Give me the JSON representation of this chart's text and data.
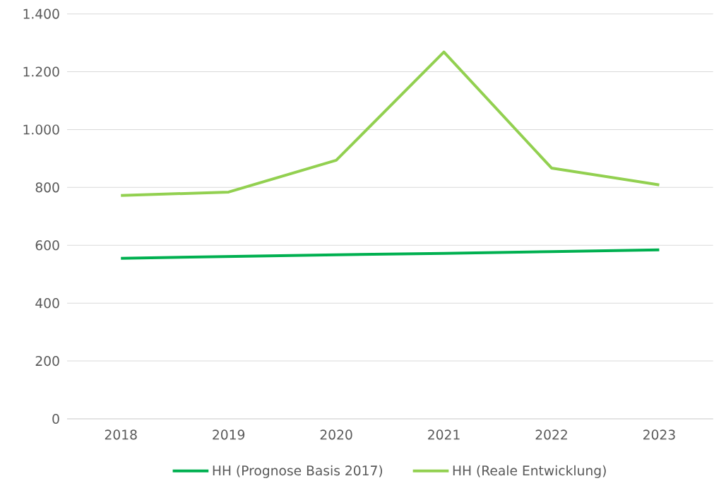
{
  "chart_data": {
    "type": "line",
    "categories": [
      "2018",
      "2019",
      "2020",
      "2021",
      "2022",
      "2023"
    ],
    "series": [
      {
        "name": "HH (Prognose Basis 2017)",
        "color": "#00b050",
        "values": [
          555,
          561,
          567,
          572,
          578,
          584
        ]
      },
      {
        "name": "HH (Reale Entwicklung)",
        "color": "#92d050",
        "values": [
          772,
          784,
          894,
          1268,
          867,
          809
        ]
      }
    ],
    "ylim": [
      0,
      1400
    ],
    "yticks": [
      0,
      200,
      400,
      600,
      800,
      {
        "value": 1000,
        "label": "1.000"
      },
      {
        "value": 1200,
        "label": "1.200"
      },
      {
        "value": 1400,
        "label": "1.400"
      }
    ],
    "grid": "y",
    "legend": "bottom"
  }
}
